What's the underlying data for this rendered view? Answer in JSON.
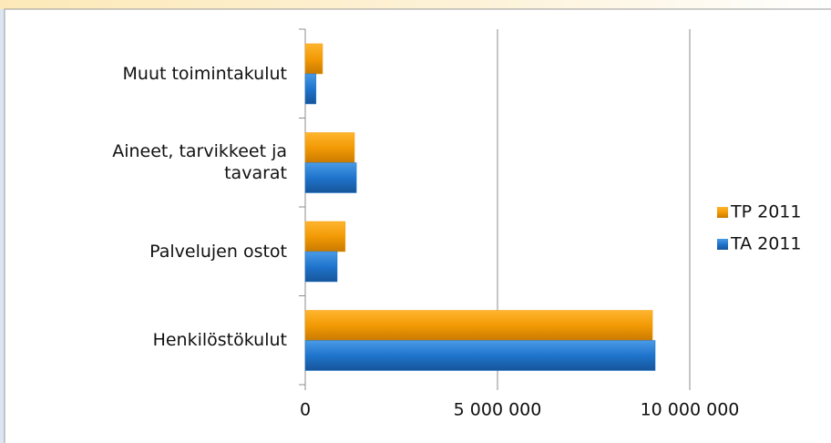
{
  "chart_data": {
    "type": "bar",
    "orientation": "horizontal",
    "categories": [
      "Henkilöstökulut",
      "Palvelujen ostot",
      "Aineet, tarvikkeet ja tavarat",
      "Muut toimintakulut"
    ],
    "series": [
      {
        "name": "TP 2011",
        "color": "#f29a05",
        "values": [
          9030000,
          1040000,
          1280000,
          450000
        ]
      },
      {
        "name": "TA 2011",
        "color": "#1f74cc",
        "values": [
          9100000,
          830000,
          1330000,
          280000
        ]
      }
    ],
    "xlim": [
      0,
      10000000
    ],
    "xticks": [
      0,
      {
        "value": 5000000,
        "label": "5 000 000"
      },
      {
        "value": 10000000,
        "label": "10 000 000"
      }
    ],
    "grid": true,
    "legend": "right"
  }
}
